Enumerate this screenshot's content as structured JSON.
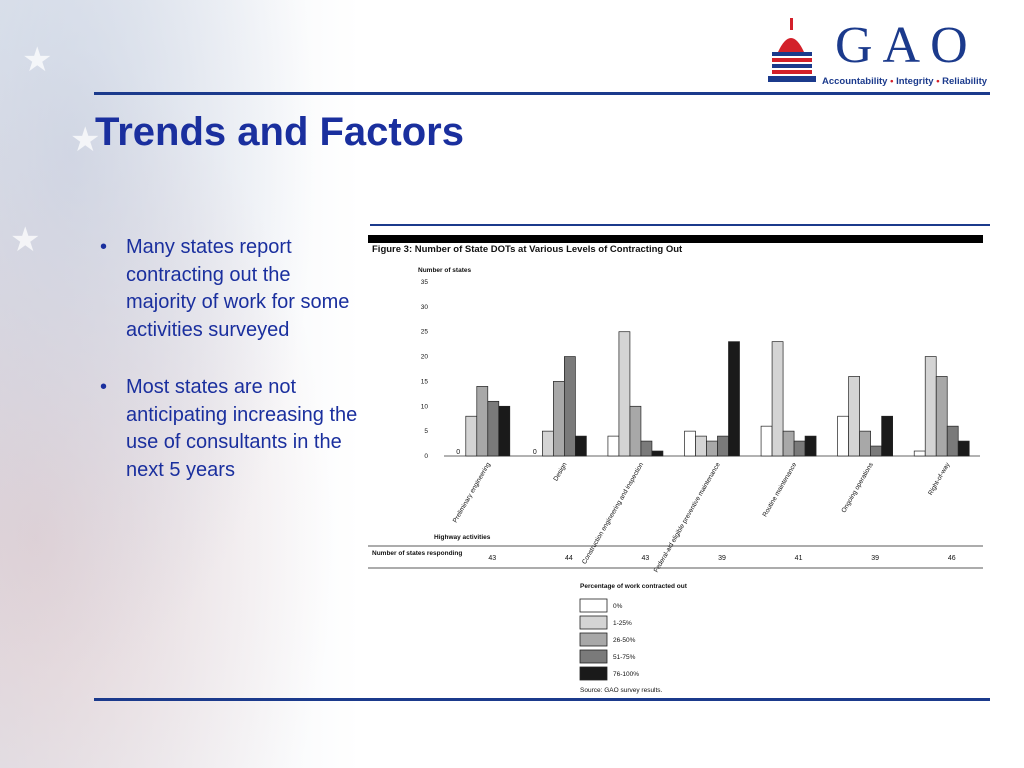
{
  "logo": {
    "text": "GAO",
    "tagline_parts": [
      "Accountability",
      "Integrity",
      "Reliability"
    ],
    "separator": "•",
    "colors": {
      "blue": "#1b3a8c",
      "red": "#d3202a"
    }
  },
  "slide": {
    "title": "Trends and Factors",
    "bullets": [
      "Many states report contracting out the majority of work for some activities surveyed",
      "Most states are not anticipating increasing the use of consultants in the next 5 years"
    ]
  },
  "chart_data": {
    "type": "bar",
    "title": "Figure 3: Number of State DOTs at Various Levels of Contracting Out",
    "ylabel": "Number of states",
    "xlabel": "Highway activities",
    "ylim": [
      0,
      35
    ],
    "yticks": [
      0,
      5,
      10,
      15,
      20,
      25,
      30,
      35
    ],
    "categories": [
      "Preliminary engineering",
      "Design",
      "Construction engineering and inspection",
      "Federal-aid eligible preventive maintenance",
      "Routine maintenance",
      "Ongoing operations",
      "Right-of-way"
    ],
    "series": [
      {
        "name": "0%",
        "color": "#ffffff",
        "values": [
          0,
          0,
          4,
          5,
          6,
          8,
          1
        ]
      },
      {
        "name": "1-25%",
        "color": "#d4d4d4",
        "values": [
          8,
          5,
          25,
          4,
          23,
          16,
          20
        ]
      },
      {
        "name": "26-50%",
        "color": "#a8a8a8",
        "values": [
          14,
          15,
          10,
          3,
          5,
          5,
          16
        ]
      },
      {
        "name": "51-75%",
        "color": "#7a7a7a",
        "values": [
          11,
          20,
          3,
          4,
          3,
          2,
          6
        ]
      },
      {
        "name": "76-100%",
        "color": "#1a1a1a",
        "values": [
          10,
          4,
          1,
          23,
          4,
          8,
          3
        ]
      }
    ],
    "zero_labels": {
      "categories": [
        0,
        1
      ],
      "text": "0"
    },
    "responding_label": "Number of states responding",
    "responding": [
      43,
      44,
      43,
      39,
      41,
      39,
      46
    ],
    "legend_title": "Percentage of work contracted out",
    "source": "Source: GAO survey results.",
    "legend_position": "bottom-center",
    "grid": false
  }
}
